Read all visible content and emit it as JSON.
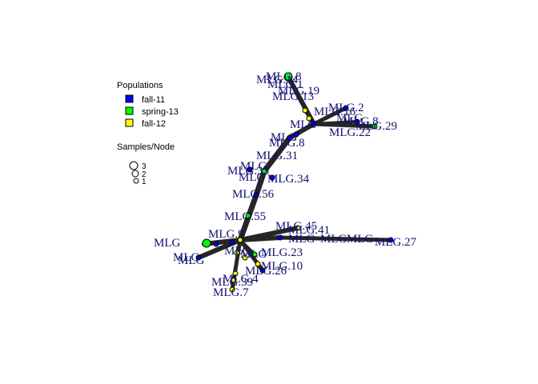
{
  "legend": {
    "populations_title": "Populations",
    "populations": [
      {
        "name": "fall-11",
        "color": "#0000ff"
      },
      {
        "name": "spring-13",
        "color": "#00ff00"
      },
      {
        "name": "fall-12",
        "color": "#ffff00"
      }
    ],
    "size_title": "Samples/Node",
    "sizes": [
      "3",
      "2",
      "1"
    ]
  },
  "network": {
    "type": "minimum spanning network",
    "edge_color": "#262626",
    "node_stroke": "#000000",
    "visible_labels": [
      "MLG.14",
      "MLG.8",
      "MLG.1",
      "MLG.19",
      "MLG.13",
      "MLG.2",
      "MLG.16",
      "MLG.8",
      "MLG.29",
      "MLG.22",
      "MLG.8",
      "MLG.31",
      "MLG.33",
      "MLG.34",
      "MLG.56",
      "MLG.55",
      "MLG.45",
      "MLG.41",
      "MLG.9",
      "MLG.27",
      "MLG.23",
      "MLG.10",
      "MLG.26",
      "MLG.4",
      "MLG.39",
      "MLG.7"
    ]
  }
}
